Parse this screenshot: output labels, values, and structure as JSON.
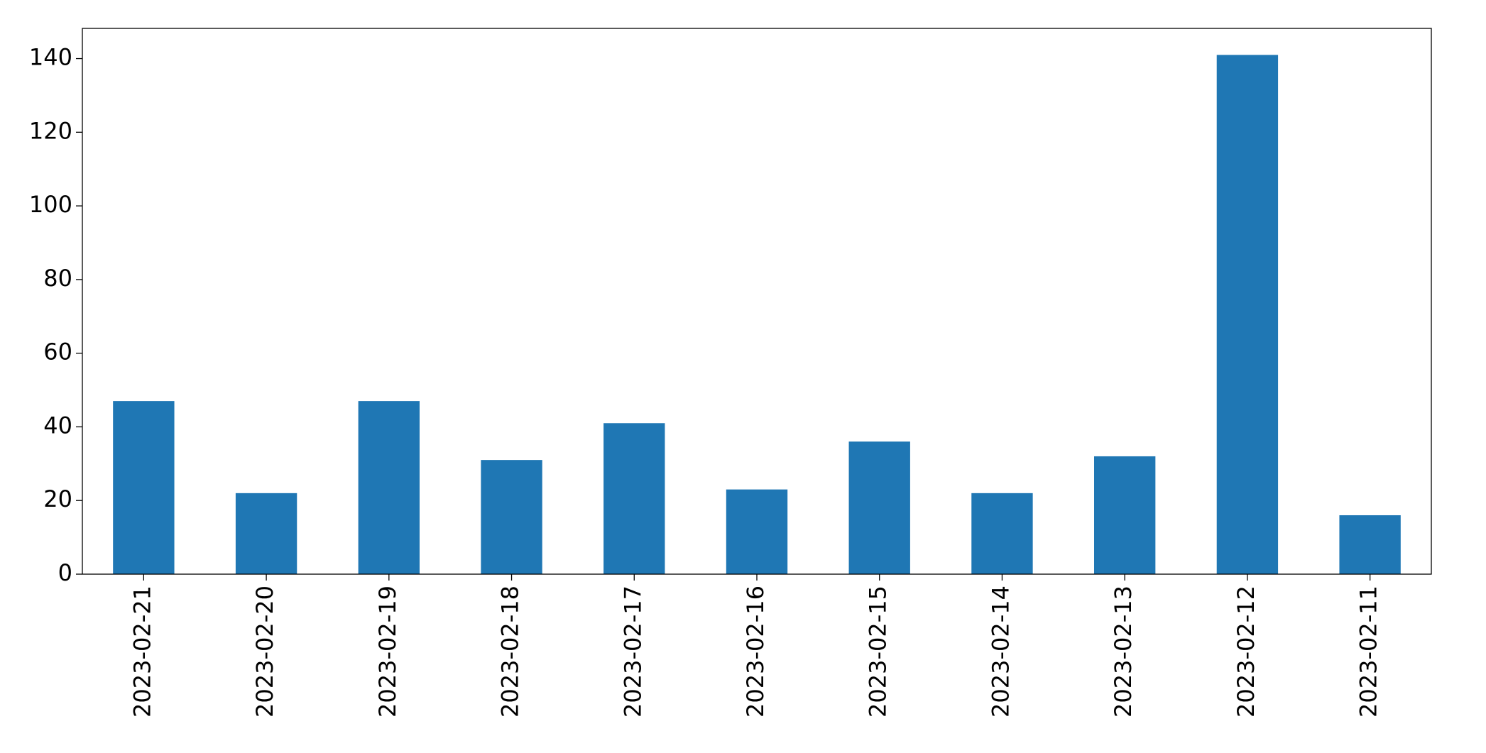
{
  "chart_data": {
    "type": "bar",
    "categories": [
      "2023-02-21",
      "2023-02-20",
      "2023-02-19",
      "2023-02-18",
      "2023-02-17",
      "2023-02-16",
      "2023-02-15",
      "2023-02-14",
      "2023-02-13",
      "2023-02-12",
      "2023-02-11"
    ],
    "values": [
      47,
      22,
      47,
      31,
      41,
      23,
      36,
      22,
      32,
      141,
      16
    ],
    "color": "#1f77b4",
    "ylim": [
      0,
      148.2
    ],
    "yticks": [
      0,
      20,
      40,
      60,
      80,
      100,
      120,
      140
    ],
    "grid": false
  }
}
